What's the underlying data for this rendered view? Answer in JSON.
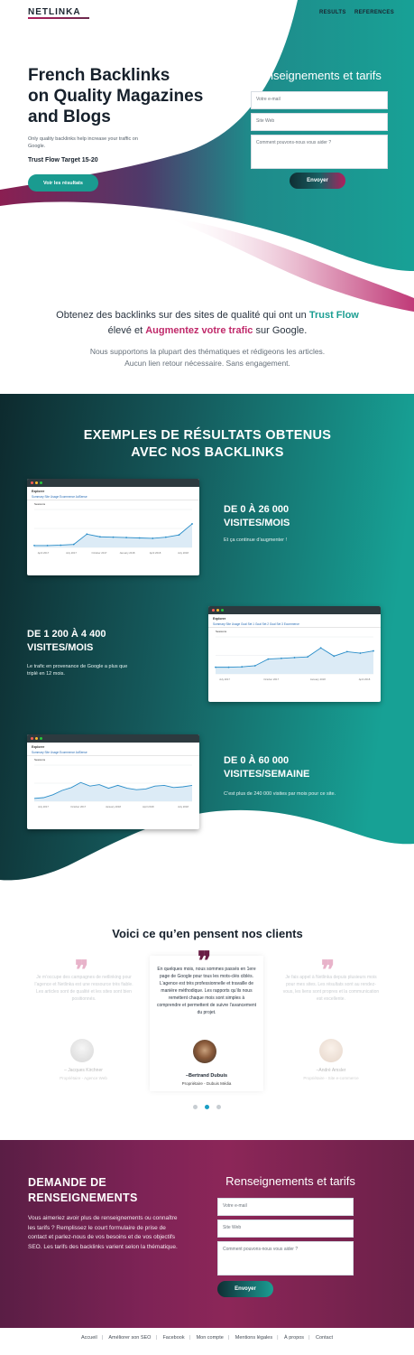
{
  "header": {
    "logo": "NETLINKA",
    "nav": [
      "RESULTS",
      "REFERENCES"
    ]
  },
  "hero": {
    "title_lines": [
      "French Backlinks",
      "on Quality Magazines",
      "and Blogs"
    ],
    "subtitle": "Only quality backlinks help increase your traffic on Google.",
    "trust_flow": "Trust Flow Target 15-20",
    "cta": "Voir les résultats"
  },
  "hero_form": {
    "title": "Renseignements et tarifs",
    "email_placeholder": "Votre e-mail",
    "site_placeholder": "Site Web",
    "message_placeholder": "Comment pouvons-nous vous aider ?",
    "submit": "Envoyer"
  },
  "intro": {
    "line1_part1": "Obtenez des backlinks sur des sites de qualité qui ont un",
    "highlight1": "Trust Flow",
    "line1_part2": "élevé et",
    "highlight2": "Augmentez votre trafic",
    "line1_part3": "sur Google.",
    "line2": "Nous supportons la plupart des thématiques et rédigeons les articles.",
    "line3": "Aucun lien retour nécessaire. Sans engagement."
  },
  "results": {
    "title_line1": "EXEMPLES DE RÉSULTATS OBTENUS",
    "title_line2": "AVEC NOS BACKLINKS",
    "items": [
      {
        "head1": "DE 0 À 26 000",
        "head2": "VISITES/MOIS",
        "text": "Et ça continue d’augmenter !",
        "screenshot": {
          "app": "Explorer",
          "tabs": "Summary   Site Usage   Ecommerce   AdSense",
          "metric": "Sessions",
          "axis": [
            "April 2017",
            "July 2017",
            "October 2017",
            "January 2018",
            "April 2018",
            "July 2018"
          ],
          "values": [
            0.05,
            0.05,
            0.06,
            0.08,
            0.35,
            0.28,
            0.27,
            0.26,
            0.25,
            0.24,
            0.27,
            0.33,
            0.62
          ]
        }
      },
      {
        "head1": "DE 1 200 À 4 400",
        "head2": "VISITES/MOIS",
        "text": "Le trafic en provenance de Google a plus que triplé en 12 mois.",
        "screenshot": {
          "app": "Explorer",
          "tabs": "Summary   Site Usage   Goal Set 1   Goal Set 2   Goal Set 3   Ecommerce",
          "metric": "Sessions",
          "axis": [
            "July 2017",
            "October 2017",
            "January 2018",
            "April 2018"
          ],
          "values": [
            0.18,
            0.18,
            0.19,
            0.22,
            0.4,
            0.42,
            0.44,
            0.46,
            0.7,
            0.48,
            0.6,
            0.56,
            0.62
          ]
        }
      },
      {
        "head1": "DE 0 À 60 000",
        "head2": "VISITES/SEMAINE",
        "text": "C’est plus de 240 000 visites par mois pour ce site.",
        "screenshot": {
          "app": "Explorer",
          "tabs": "Summary   Site Usage   Ecommerce   AdSense",
          "metric": "Sessions",
          "axis": [
            "July 2017",
            "October 2017",
            "January 2018",
            "April 2018",
            "July 2018"
          ],
          "values": [
            0.08,
            0.1,
            0.18,
            0.3,
            0.38,
            0.52,
            0.42,
            0.46,
            0.36,
            0.44,
            0.36,
            0.32,
            0.34,
            0.42,
            0.44,
            0.38,
            0.4,
            0.44
          ]
        }
      }
    ]
  },
  "testimonials": {
    "title": "Voici ce qu’en pensent nos clients",
    "items": [
      {
        "text": "Je m’occupe des campagnes de netlinking pour l’agence et Netlinka est une ressource très fiable. Les articles sont de qualité et les sites sont bien positionnés.",
        "name": "– Jacques Kirchner",
        "role": "Propriétaire - Agence Web"
      },
      {
        "text": "En quelques mois, nous sommes passés en 1ere page de Google pour tous les mots-clés ciblés. L’agence est très professionnelle et travaille de manière méthodique. Les rapports qu’ils nous remettent chaque mois sont simples à comprendre et permettent de suivre l’avancement du projet.",
        "name": "–Bertrand Dubuis",
        "role": "Propriétaire - Dubuis Média"
      },
      {
        "text": "Je fais appel à Netlinka depuis plusieurs mois pour mes sites. Les résultats sont au rendez-vous, les liens sont propres et la communication est excellente.",
        "name": "–André Amsler",
        "role": "Propriétaire - Site e-commerce"
      }
    ]
  },
  "contact": {
    "title_line1": "DEMANDE DE",
    "title_line2": "RENSEIGNEMENTS",
    "text": "Vous aimeriez avoir plus de renseignements ou connaître les tarifs ? Remplissez le court formulaire de prise de contact et parlez-nous de vos besoins et de vos objectifs SEO. Les tarifs des backlinks varient selon la thématique.",
    "form_title": "Renseignements et tarifs",
    "email_placeholder": "Votre e-mail",
    "site_placeholder": "Site Web",
    "message_placeholder": "Comment pouvons-nous vous aider ?",
    "submit": "Envoyer"
  },
  "footer": {
    "links": [
      "Accueil",
      "Améliorer son SEO",
      "Facebook",
      "Mon compte",
      "Mentions légales",
      "À propos",
      "Contact"
    ]
  },
  "colors": {
    "teal": "#1b9e92",
    "dark_teal": "#0e2d30",
    "magenta": "#b01f5d",
    "plum": "#5a1e45"
  }
}
